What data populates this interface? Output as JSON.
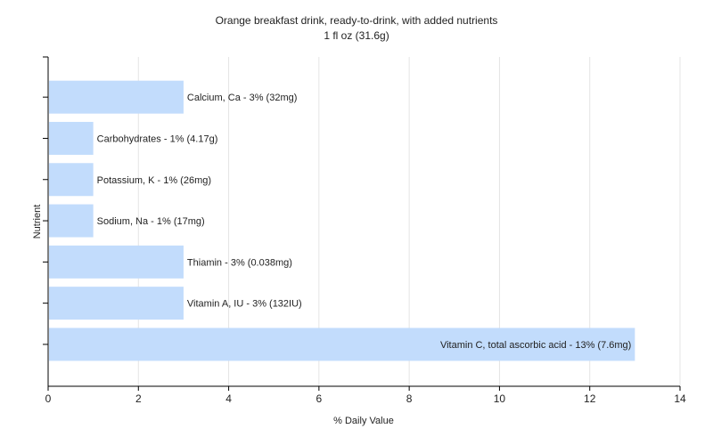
{
  "chart_data": {
    "type": "bar",
    "orientation": "horizontal",
    "title": "Orange breakfast drink, ready-to-drink, with added nutrients",
    "subtitle": "1 fl oz (31.6g)",
    "xlabel": "% Daily Value",
    "ylabel": "Nutrient",
    "xlim": [
      0,
      14
    ],
    "xticks": [
      0,
      2,
      4,
      6,
      8,
      10,
      12,
      14
    ],
    "grid": true,
    "bar_color": "#c2dcfc",
    "categories": [
      "Calcium, Ca",
      "Carbohydrates",
      "Potassium, K",
      "Sodium, Na",
      "Thiamin",
      "Vitamin A, IU",
      "Vitamin C, total ascorbic acid"
    ],
    "values": [
      3,
      1,
      1,
      1,
      3,
      3,
      13
    ],
    "labels": [
      "Calcium, Ca - 3% (32mg)",
      "Carbohydrates - 1% (4.17g)",
      "Potassium, K - 1% (26mg)",
      "Sodium, Na - 1% (17mg)",
      "Thiamin - 3% (0.038mg)",
      "Vitamin A, IU - 3% (132IU)",
      "Vitamin C, total ascorbic acid - 13% (7.6mg)"
    ]
  }
}
